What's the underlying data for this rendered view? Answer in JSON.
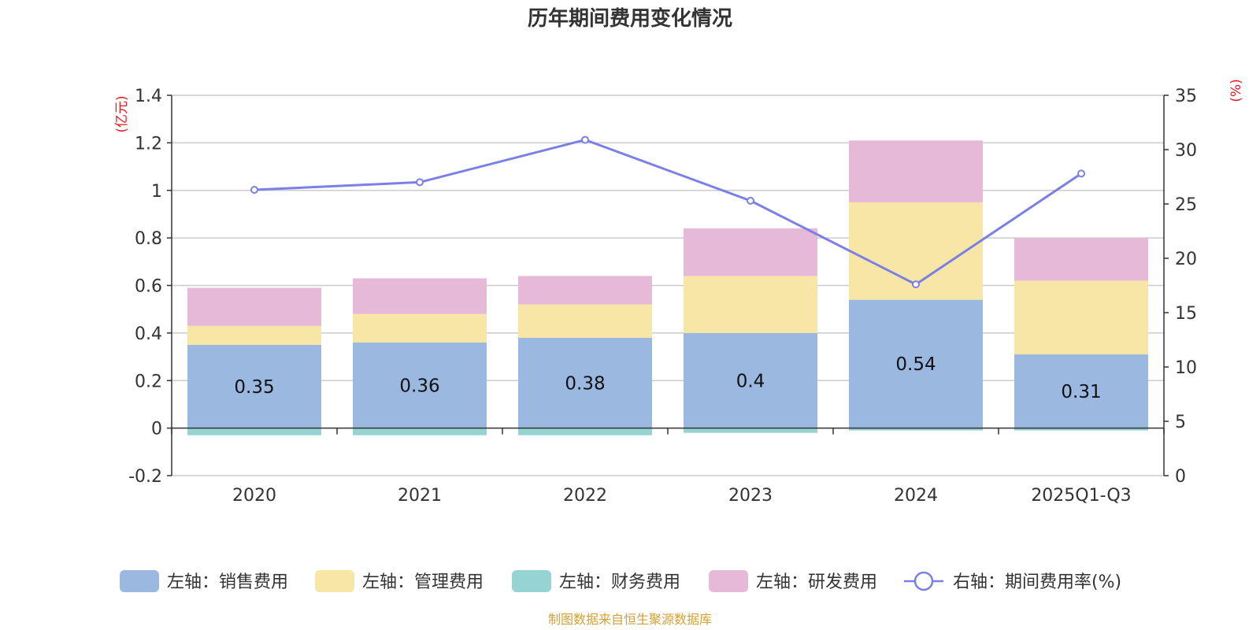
{
  "chart_data": {
    "type": "bar",
    "title": "历年期间费用变化情况",
    "categories": [
      "2020",
      "2021",
      "2022",
      "2023",
      "2024",
      "2025Q1-Q3"
    ],
    "left_axis": {
      "unit_label": "(亿元)",
      "ylim": [
        -0.2,
        1.4
      ],
      "ticks": [
        -0.2,
        0,
        0.2,
        0.4,
        0.6,
        0.8,
        1,
        1.2,
        1.4
      ],
      "tick_labels": [
        "-0.2",
        "0",
        "0.2",
        "0.4",
        "0.6",
        "0.8",
        "1",
        "1.2",
        "1.4"
      ]
    },
    "right_axis": {
      "unit_label": "(%)",
      "ylim": [
        0,
        35
      ],
      "ticks": [
        0,
        5,
        10,
        15,
        20,
        25,
        30,
        35
      ],
      "tick_labels": [
        "0",
        "5",
        "10",
        "15",
        "20",
        "25",
        "30",
        "35"
      ]
    },
    "series": [
      {
        "name": "左轴：销售费用",
        "axis": "left",
        "type": "bar",
        "color": "#9bb8e0",
        "values": [
          0.35,
          0.36,
          0.38,
          0.4,
          0.54,
          0.31
        ],
        "data_labels": [
          "0.35",
          "0.36",
          "0.38",
          "0.4",
          "0.54",
          "0.31"
        ]
      },
      {
        "name": "左轴：管理费用",
        "axis": "left",
        "type": "bar",
        "color": "#f8e6a6",
        "values": [
          0.08,
          0.12,
          0.14,
          0.24,
          0.41,
          0.31
        ]
      },
      {
        "name": "左轴：财务费用",
        "axis": "left",
        "type": "bar",
        "color": "#96d4d4",
        "values": [
          -0.03,
          -0.03,
          -0.03,
          -0.02,
          -0.01,
          -0.01
        ]
      },
      {
        "name": "左轴：研发费用",
        "axis": "left",
        "type": "bar",
        "color": "#e6b9d9",
        "values": [
          0.16,
          0.15,
          0.12,
          0.2,
          0.26,
          0.18
        ]
      },
      {
        "name": "右轴：期间费用率(%)",
        "axis": "right",
        "type": "line",
        "color": "#7b7fe8",
        "values": [
          26.3,
          27.0,
          30.9,
          25.3,
          17.6,
          27.8
        ]
      }
    ],
    "legend_position": "bottom",
    "grid": true
  },
  "source_note": "制图数据来自恒生聚源数据库",
  "colors": {
    "axis_unit": "#e6171f",
    "source": "#d4a037",
    "grid": "#cccccc",
    "axis": "#333333"
  }
}
